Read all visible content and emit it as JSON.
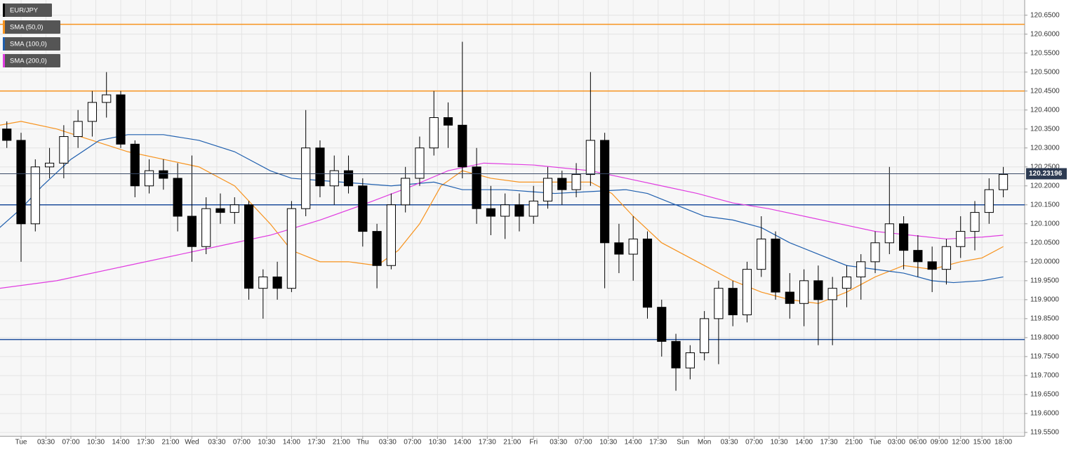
{
  "chart_data": {
    "type": "candlestick",
    "name": "EUR/JPY",
    "up_color": "#ffffff",
    "down_color": "#000000",
    "x": [
      -2,
      0,
      2,
      4,
      6,
      8,
      10,
      12,
      14,
      16,
      18,
      20,
      22,
      24,
      26,
      28,
      30,
      32,
      34,
      36,
      38,
      40,
      42,
      44,
      46,
      48,
      50,
      52,
      54,
      56,
      58,
      60,
      62,
      64,
      66,
      68,
      70,
      72,
      74,
      76,
      78,
      80,
      82,
      84,
      86,
      88,
      90,
      92,
      94,
      96,
      98,
      100,
      102,
      104,
      106,
      108,
      110,
      112,
      114,
      116,
      118,
      120,
      122,
      124,
      126,
      128,
      130,
      132,
      134,
      136,
      138
    ],
    "open": [
      120.35,
      120.32,
      120.1,
      120.25,
      120.26,
      120.33,
      120.37,
      120.42,
      120.44,
      120.31,
      120.2,
      120.24,
      120.22,
      120.12,
      120.04,
      120.14,
      120.13,
      120.15,
      119.93,
      119.96,
      119.93,
      120.14,
      120.3,
      120.2,
      120.24,
      120.2,
      120.08,
      119.99,
      120.15,
      120.22,
      120.3,
      120.38,
      120.36,
      120.25,
      120.14,
      120.12,
      120.15,
      120.12,
      120.16,
      120.22,
      120.19,
      120.23,
      120.32,
      120.05,
      120.02,
      120.06,
      119.88,
      119.79,
      119.72,
      119.76,
      119.85,
      119.93,
      119.86,
      119.98,
      120.06,
      119.92,
      119.89,
      119.95,
      119.9,
      119.93,
      119.96,
      120.0,
      120.05,
      120.1,
      120.03,
      120.0,
      119.98,
      120.04,
      120.08,
      120.13,
      120.19
    ],
    "high": [
      120.37,
      120.34,
      120.27,
      120.3,
      120.36,
      120.4,
      120.45,
      120.5,
      120.45,
      120.32,
      120.27,
      120.27,
      120.26,
      120.28,
      120.17,
      120.18,
      120.17,
      120.16,
      119.98,
      120.0,
      120.16,
      120.4,
      120.32,
      120.28,
      120.28,
      120.22,
      120.1,
      120.18,
      120.25,
      120.33,
      120.45,
      120.42,
      120.58,
      120.3,
      120.2,
      120.18,
      120.18,
      120.2,
      120.25,
      120.24,
      120.26,
      120.5,
      120.34,
      120.1,
      120.12,
      120.08,
      119.9,
      119.81,
      119.78,
      119.87,
      119.95,
      119.95,
      120.0,
      120.12,
      120.08,
      119.97,
      119.98,
      119.99,
      119.96,
      119.99,
      120.02,
      120.08,
      120.25,
      120.12,
      120.07,
      120.04,
      120.06,
      120.12,
      120.16,
      120.22,
      120.25
    ],
    "low": [
      120.3,
      120.0,
      120.08,
      120.22,
      120.22,
      120.3,
      120.33,
      120.38,
      120.3,
      120.17,
      120.18,
      120.19,
      120.08,
      120.0,
      120.02,
      120.1,
      120.1,
      119.9,
      119.85,
      119.9,
      119.92,
      120.12,
      120.17,
      120.15,
      120.18,
      120.04,
      119.93,
      119.98,
      120.13,
      120.2,
      120.28,
      120.3,
      120.22,
      120.1,
      120.07,
      120.06,
      120.08,
      120.1,
      120.14,
      120.15,
      120.17,
      120.2,
      119.93,
      119.97,
      119.95,
      119.85,
      119.75,
      119.66,
      119.69,
      119.74,
      119.73,
      119.83,
      119.84,
      119.96,
      119.9,
      119.85,
      119.83,
      119.78,
      119.78,
      119.88,
      119.9,
      119.97,
      120.02,
      119.98,
      119.96,
      119.92,
      119.94,
      120.01,
      120.03,
      120.1,
      120.17
    ],
    "close": [
      120.32,
      120.1,
      120.25,
      120.26,
      120.33,
      120.37,
      120.42,
      120.44,
      120.31,
      120.2,
      120.24,
      120.22,
      120.12,
      120.04,
      120.14,
      120.13,
      120.15,
      119.93,
      119.96,
      119.93,
      120.14,
      120.3,
      120.2,
      120.24,
      120.2,
      120.08,
      119.99,
      120.15,
      120.22,
      120.3,
      120.38,
      120.36,
      120.25,
      120.14,
      120.12,
      120.15,
      120.12,
      120.16,
      120.22,
      120.19,
      120.23,
      120.32,
      120.05,
      120.02,
      120.06,
      119.88,
      119.79,
      119.72,
      119.76,
      119.85,
      119.93,
      119.86,
      119.98,
      120.06,
      119.92,
      119.89,
      119.95,
      119.9,
      119.93,
      119.96,
      120.0,
      120.05,
      120.1,
      120.03,
      120.0,
      119.98,
      120.04,
      120.08,
      120.13,
      120.19,
      120.23
    ],
    "sma": [
      {
        "name": "SMA (50,0)",
        "color": "#f7931e",
        "x": [
          -3,
          0,
          5,
          10,
          15,
          20,
          25,
          30,
          35,
          38,
          42,
          46,
          50,
          53,
          56,
          59,
          62,
          66,
          70,
          75,
          80,
          83,
          86,
          90,
          95,
          100,
          104,
          108,
          112,
          116,
          120,
          124,
          128,
          132,
          135,
          138
        ],
        "values": [
          120.36,
          120.37,
          120.35,
          120.32,
          120.29,
          120.27,
          120.25,
          120.2,
          120.1,
          120.03,
          120.0,
          120.0,
          119.99,
          120.03,
          120.1,
          120.2,
          120.24,
          120.22,
          120.21,
          120.21,
          120.21,
          120.18,
          120.12,
          120.05,
          120.0,
          119.95,
          119.92,
          119.9,
          119.89,
          119.92,
          119.96,
          119.99,
          119.98,
          120.0,
          120.01,
          120.04
        ]
      },
      {
        "name": "SMA (100,0)",
        "color": "#1f5fae",
        "x": [
          -3,
          0,
          3,
          7,
          11,
          15,
          20,
          25,
          30,
          35,
          38,
          45,
          52,
          58,
          62,
          68,
          75,
          80,
          85,
          88,
          92,
          96,
          100,
          104,
          108,
          112,
          116,
          120,
          124,
          128,
          131,
          135,
          138
        ],
        "values": [
          120.09,
          120.14,
          120.2,
          120.27,
          120.32,
          120.335,
          120.335,
          120.32,
          120.29,
          120.24,
          120.22,
          120.21,
          120.2,
          120.21,
          120.19,
          120.19,
          120.18,
          120.185,
          120.19,
          120.18,
          120.15,
          120.12,
          120.11,
          120.09,
          120.05,
          120.02,
          119.99,
          119.98,
          119.97,
          119.95,
          119.945,
          119.95,
          119.96
        ]
      },
      {
        "name": "SMA (200,0)",
        "color": "#e03ce0",
        "x": [
          -3,
          5,
          15,
          25,
          35,
          42,
          48,
          55,
          60,
          65,
          72,
          80,
          85,
          90,
          95,
          100,
          105,
          110,
          115,
          120,
          125,
          130,
          135,
          138
        ],
        "values": [
          119.93,
          119.95,
          119.99,
          120.03,
          120.07,
          120.11,
          120.15,
          120.2,
          120.24,
          120.26,
          120.255,
          120.24,
          120.22,
          120.2,
          120.18,
          120.155,
          120.14,
          120.12,
          120.1,
          120.08,
          120.07,
          120.06,
          120.065,
          120.07
        ]
      }
    ],
    "hlines": [
      {
        "value": 120.626,
        "color": "#f7931e"
      },
      {
        "value": 120.45,
        "color": "#f7931e"
      },
      {
        "value": 120.15,
        "color": "#1f4e9c"
      },
      {
        "value": 119.795,
        "color": "#1f4e9c"
      }
    ],
    "last_price": 120.23196,
    "xlim": [
      -2.96,
      141.0
    ],
    "ylim": [
      119.54,
      120.69
    ],
    "grid": true,
    "xticks": [
      {
        "value": 0,
        "label": "Tue"
      },
      {
        "value": 3.5,
        "label": "03:30"
      },
      {
        "value": 7,
        "label": "07:00"
      },
      {
        "value": 10.5,
        "label": "10:30"
      },
      {
        "value": 14,
        "label": "14:00"
      },
      {
        "value": 17.5,
        "label": "17:30"
      },
      {
        "value": 21,
        "label": "21:00"
      },
      {
        "value": 24,
        "label": "Wed"
      },
      {
        "value": 27.5,
        "label": "03:30"
      },
      {
        "value": 31,
        "label": "07:00"
      },
      {
        "value": 34.5,
        "label": "10:30"
      },
      {
        "value": 38,
        "label": "14:00"
      },
      {
        "value": 41.5,
        "label": "17:30"
      },
      {
        "value": 45,
        "label": "21:00"
      },
      {
        "value": 48,
        "label": "Thu"
      },
      {
        "value": 51.5,
        "label": "03:30"
      },
      {
        "value": 55,
        "label": "07:00"
      },
      {
        "value": 58.5,
        "label": "10:30"
      },
      {
        "value": 62,
        "label": "14:00"
      },
      {
        "value": 65.5,
        "label": "17:30"
      },
      {
        "value": 69,
        "label": "21:00"
      },
      {
        "value": 72,
        "label": "Fri"
      },
      {
        "value": 75.5,
        "label": "03:30"
      },
      {
        "value": 79,
        "label": "07:00"
      },
      {
        "value": 82.5,
        "label": "10:30"
      },
      {
        "value": 86,
        "label": "14:00"
      },
      {
        "value": 89.5,
        "label": "17:30"
      },
      {
        "value": 93,
        "label": "Sun"
      },
      {
        "value": 96,
        "label": "Mon"
      },
      {
        "value": 99.5,
        "label": "03:30"
      },
      {
        "value": 103,
        "label": "07:00"
      },
      {
        "value": 106.5,
        "label": "10:30"
      },
      {
        "value": 110,
        "label": "14:00"
      },
      {
        "value": 113.5,
        "label": "17:30"
      },
      {
        "value": 117,
        "label": "21:00"
      },
      {
        "value": 120,
        "label": "Tue"
      },
      {
        "value": 123,
        "label": "03:00"
      },
      {
        "value": 126,
        "label": "06:00"
      },
      {
        "value": 129,
        "label": "09:00"
      },
      {
        "value": 132,
        "label": "12:00"
      },
      {
        "value": 135,
        "label": "15:00"
      },
      {
        "value": 138,
        "label": "18:00"
      }
    ],
    "yticks": [
      {
        "value": 119.55,
        "label": "119.5500"
      },
      {
        "value": 119.6,
        "label": "119.6000"
      },
      {
        "value": 119.65,
        "label": "119.6500"
      },
      {
        "value": 119.7,
        "label": "119.7000"
      },
      {
        "value": 119.75,
        "label": "119.7500"
      },
      {
        "value": 119.8,
        "label": "119.8000"
      },
      {
        "value": 119.85,
        "label": "119.8500"
      },
      {
        "value": 119.9,
        "label": "119.9000"
      },
      {
        "value": 119.95,
        "label": "119.9500"
      },
      {
        "value": 120.0,
        "label": "120.0000"
      },
      {
        "value": 120.05,
        "label": "120.0500"
      },
      {
        "value": 120.1,
        "label": "120.1000"
      },
      {
        "value": 120.15,
        "label": "120.1500"
      },
      {
        "value": 120.2,
        "label": "120.2000"
      },
      {
        "value": 120.25,
        "label": "120.2500"
      },
      {
        "value": 120.3,
        "label": "120.3000"
      },
      {
        "value": 120.35,
        "label": "120.3500"
      },
      {
        "value": 120.4,
        "label": "120.4000"
      },
      {
        "value": 120.45,
        "label": "120.4500"
      },
      {
        "value": 120.5,
        "label": "120.5000"
      },
      {
        "value": 120.55,
        "label": "120.5500"
      },
      {
        "value": 120.6,
        "label": "120.6000"
      },
      {
        "value": 120.65,
        "label": "120.6500"
      }
    ]
  }
}
